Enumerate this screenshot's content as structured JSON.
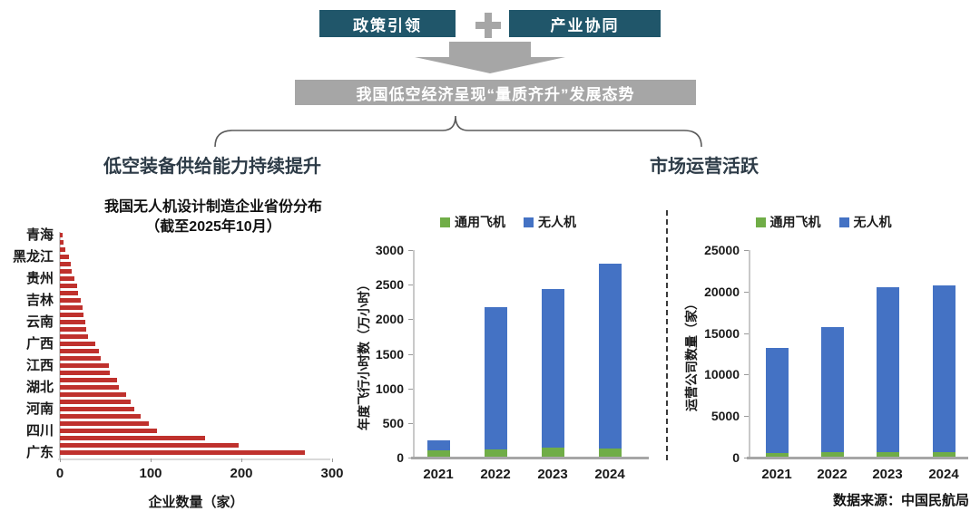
{
  "flow": {
    "box1": "政策引领",
    "plus": "+",
    "box2": "产业协同",
    "banner": "我国低空经济呈现“量质齐升”发展态势"
  },
  "sections": {
    "left_header": "低空装备供给能力持续提升",
    "right_header": "市场运营活跃"
  },
  "source_note": "数据来源：中国民航局",
  "colors": {
    "teal_box": "#20566a",
    "gray_shape": "#a6a6a6",
    "red_bar": "#bf312d",
    "green_series": "#70ad47",
    "blue_series": "#4472c4",
    "header_text": "#2d3b47"
  },
  "chart_data": [
    {
      "type": "bar",
      "orientation": "horizontal",
      "title": "我国无人机设计制造企业省份分布",
      "subtitle": "（截至2025年10月）",
      "xlabel": "企业数量（家）",
      "ylabel": "",
      "xlim": [
        0,
        300
      ],
      "xticks": [
        0,
        100,
        200,
        300
      ],
      "bar_color": "#bf312d",
      "note": "31 bars, only every third category labeled",
      "categories": [
        "青海",
        "",
        "",
        "黑龙江",
        "",
        "",
        "贵州",
        "",
        "",
        "吉林",
        "",
        "",
        "云南",
        "",
        "",
        "广西",
        "",
        "",
        "江西",
        "",
        "",
        "湖北",
        "",
        "",
        "河南",
        "",
        "",
        "四川",
        "",
        "",
        "广东"
      ],
      "values": [
        3,
        4,
        6,
        10,
        12,
        13,
        16,
        19,
        20,
        23,
        25,
        26,
        28,
        29,
        31,
        39,
        43,
        45,
        54,
        55,
        63,
        65,
        73,
        78,
        82,
        89,
        98,
        107,
        160,
        197,
        270
      ]
    },
    {
      "type": "bar",
      "subtype": "stacked",
      "title": "",
      "ylabel": "年度飞行小时数（万小时）",
      "xlabel": "",
      "ylim": [
        0,
        3000
      ],
      "yticks": [
        0,
        500,
        1000,
        1500,
        2000,
        2500,
        3000
      ],
      "legend_position": "top",
      "categories": [
        "2021",
        "2022",
        "2023",
        "2024"
      ],
      "series": [
        {
          "name": "通用飞机",
          "color": "#70ad47",
          "values": [
            100,
            120,
            140,
            130
          ]
        },
        {
          "name": "无人机",
          "color": "#4472c4",
          "values": [
            150,
            2060,
            2300,
            2670
          ]
        }
      ],
      "totals": [
        250,
        2180,
        2440,
        2800
      ]
    },
    {
      "type": "bar",
      "subtype": "stacked",
      "title": "",
      "ylabel": "运营公司数量（家）",
      "xlabel": "",
      "ylim": [
        0,
        25000
      ],
      "yticks": [
        0,
        5000,
        10000,
        15000,
        20000,
        25000
      ],
      "legend_position": "top",
      "categories": [
        "2021",
        "2022",
        "2023",
        "2024"
      ],
      "series": [
        {
          "name": "通用飞机",
          "color": "#70ad47",
          "values": [
            550,
            650,
            650,
            700
          ]
        },
        {
          "name": "无人机",
          "color": "#4472c4",
          "values": [
            12650,
            15100,
            19850,
            20000
          ]
        }
      ],
      "totals": [
        13200,
        15750,
        20500,
        20700
      ]
    }
  ]
}
